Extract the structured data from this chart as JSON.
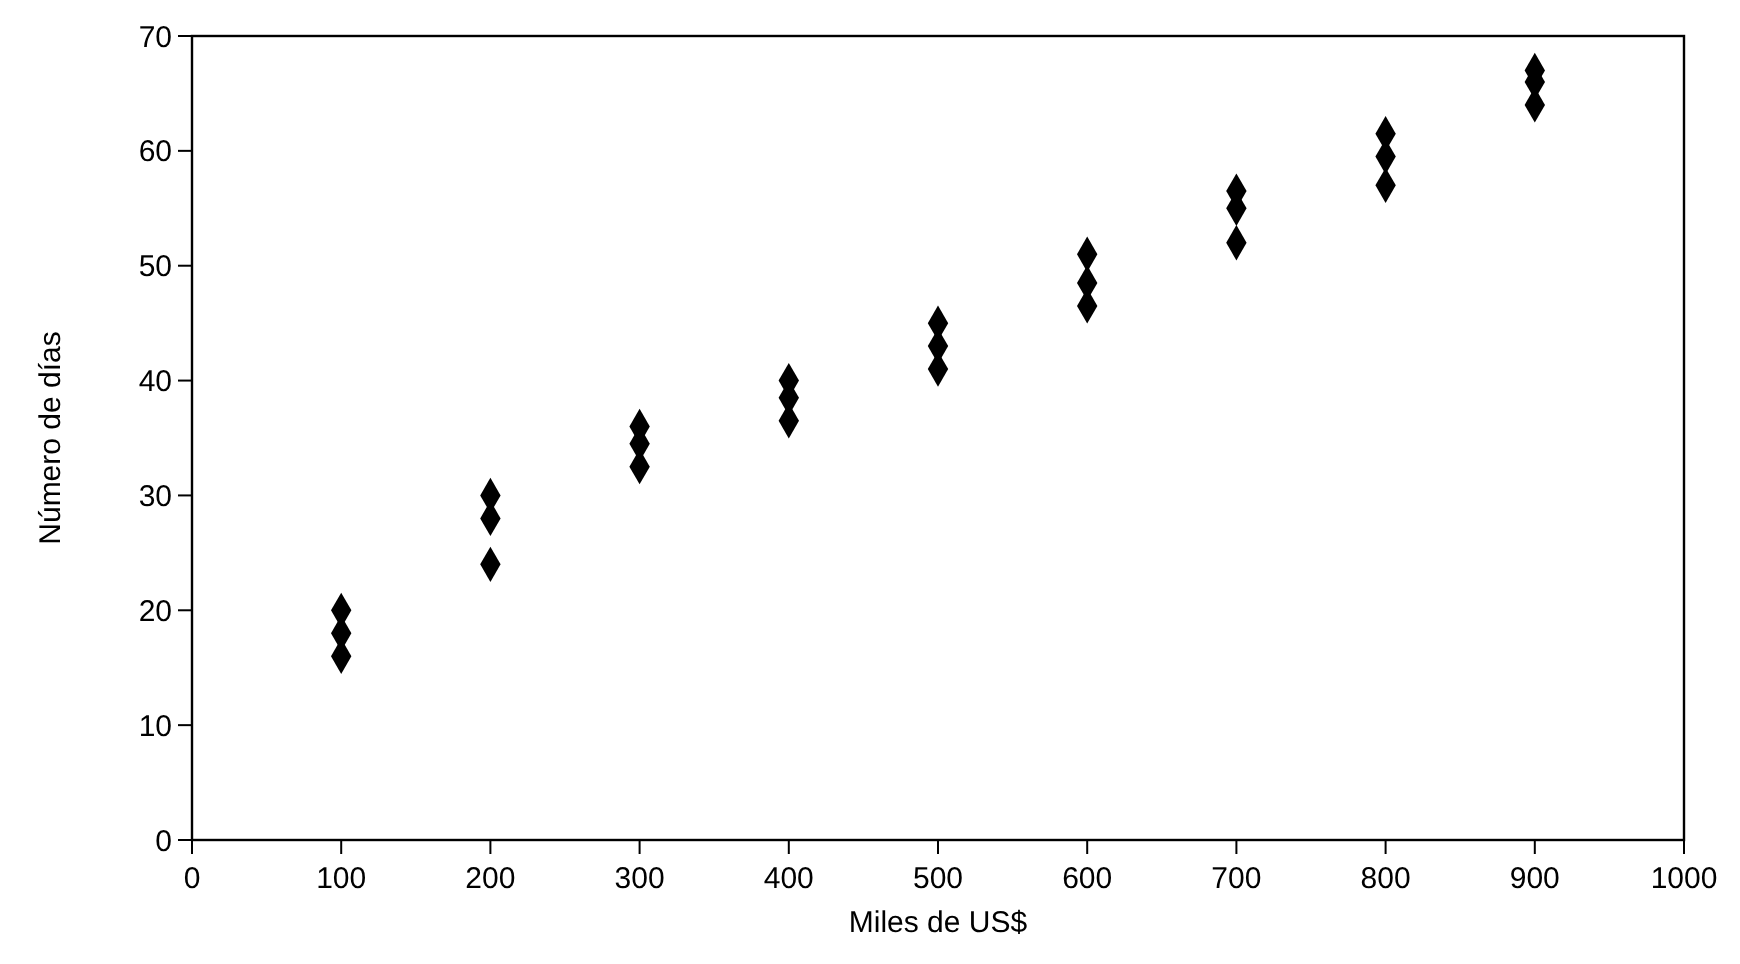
{
  "chart_data": {
    "type": "scatter",
    "xlabel": "Miles de US$",
    "ylabel": "Número de días",
    "x": [
      100,
      100,
      100,
      200,
      200,
      200,
      300,
      300,
      300,
      400,
      400,
      400,
      500,
      500,
      500,
      600,
      600,
      600,
      700,
      700,
      700,
      800,
      800,
      800,
      900,
      900,
      900
    ],
    "values": [
      20,
      18,
      16,
      30,
      28,
      24,
      36,
      34.5,
      32.5,
      40,
      38.5,
      36.5,
      45,
      43,
      41,
      51,
      48.5,
      46.5,
      56.5,
      55,
      52,
      61.5,
      59.5,
      57,
      67,
      66,
      64
    ],
    "color": "#000000",
    "marker": "diamond",
    "xlim": [
      0,
      1000
    ],
    "xticks": [
      0,
      100,
      200,
      300,
      400,
      500,
      600,
      700,
      800,
      900,
      1000
    ],
    "ylim": [
      0,
      70
    ],
    "yticks": [
      0,
      10,
      20,
      30,
      40,
      50,
      60,
      70
    ],
    "grid": false
  }
}
